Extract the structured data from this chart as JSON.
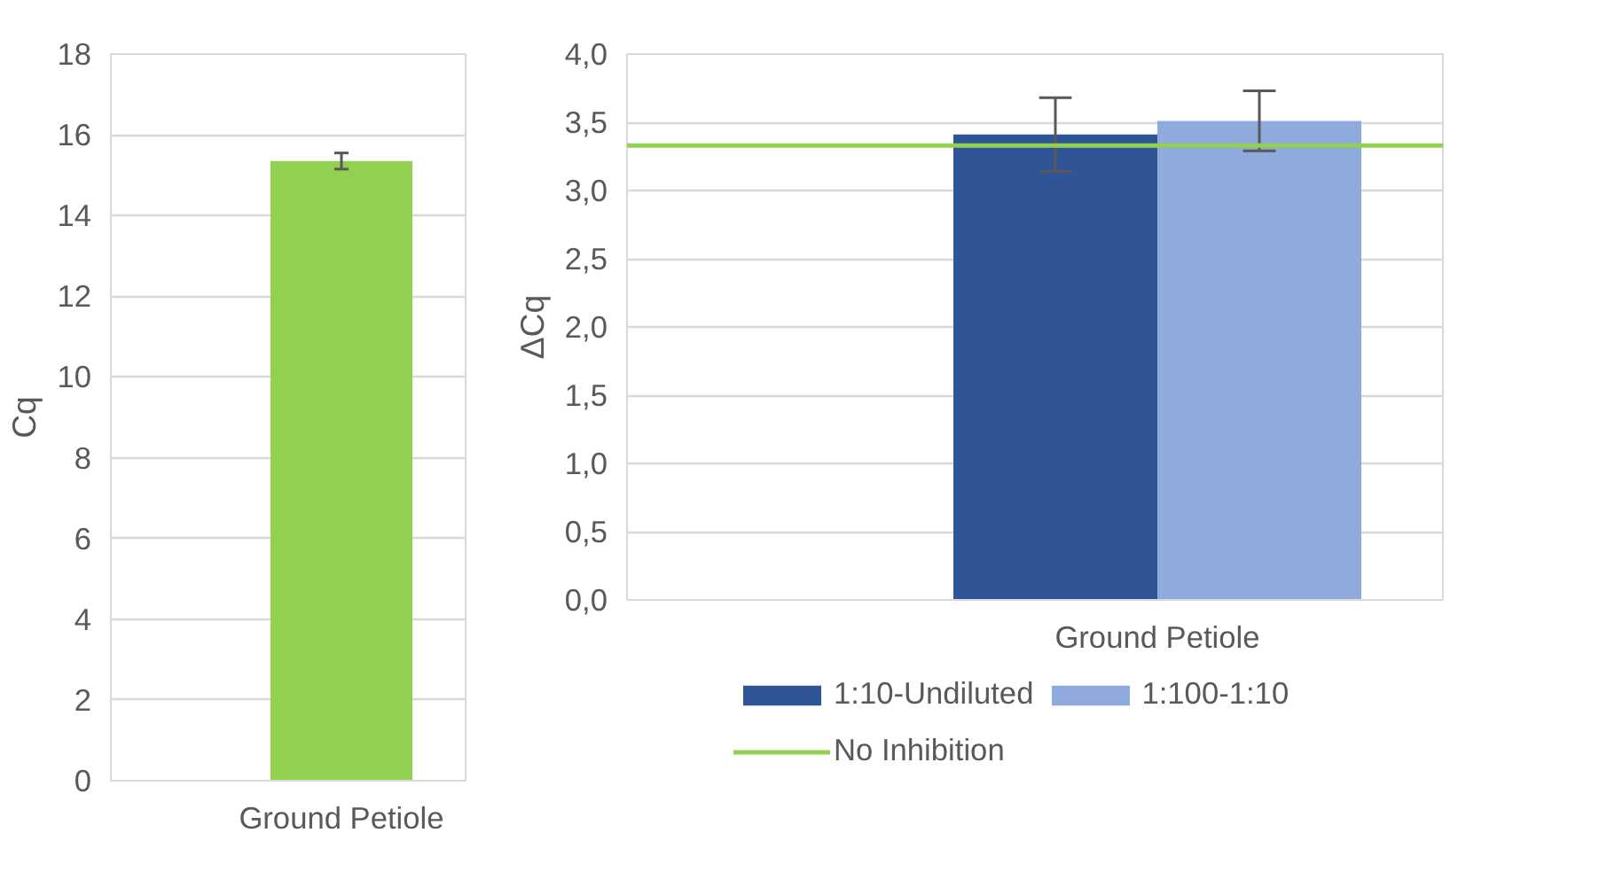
{
  "chart_data": [
    {
      "type": "bar",
      "ylabel": "Cq",
      "categories": [
        "Ground Petiole"
      ],
      "series": [
        {
          "color": "#92d050",
          "values": [
            15.35
          ],
          "errors": [
            0.2
          ]
        }
      ],
      "ylim": [
        0,
        18
      ],
      "yticks": [
        0,
        2,
        4,
        6,
        8,
        10,
        12,
        14,
        16,
        18
      ],
      "grid": "y"
    },
    {
      "type": "bar",
      "ylabel": "ΔCq",
      "categories": [
        "Ground Petiole"
      ],
      "series": [
        {
          "name": "1:10-Undiluted",
          "color": "#2f5597",
          "values": [
            3.41
          ],
          "errors": [
            0.27
          ]
        },
        {
          "name": "1:100-1:10",
          "color": "#8faadc",
          "values": [
            3.51
          ],
          "errors": [
            0.22
          ]
        }
      ],
      "ref_lines": [
        {
          "axis": "y",
          "value": 3.33,
          "label": "No Inhibition",
          "color": "#92d050"
        }
      ],
      "ylim": [
        0,
        4
      ],
      "yticks": [
        {
          "value": 0,
          "label": "0,0"
        },
        {
          "value": 0.5,
          "label": "0,5"
        },
        {
          "value": 1,
          "label": "1,0"
        },
        {
          "value": 1.5,
          "label": "1,5"
        },
        {
          "value": 2,
          "label": "2,0"
        },
        {
          "value": 2.5,
          "label": "2,5"
        },
        {
          "value": 3,
          "label": "3,0"
        },
        {
          "value": 3.5,
          "label": "3,5"
        },
        {
          "value": 4,
          "label": "4,0"
        }
      ],
      "grid": "y",
      "legend": "bottom"
    }
  ]
}
